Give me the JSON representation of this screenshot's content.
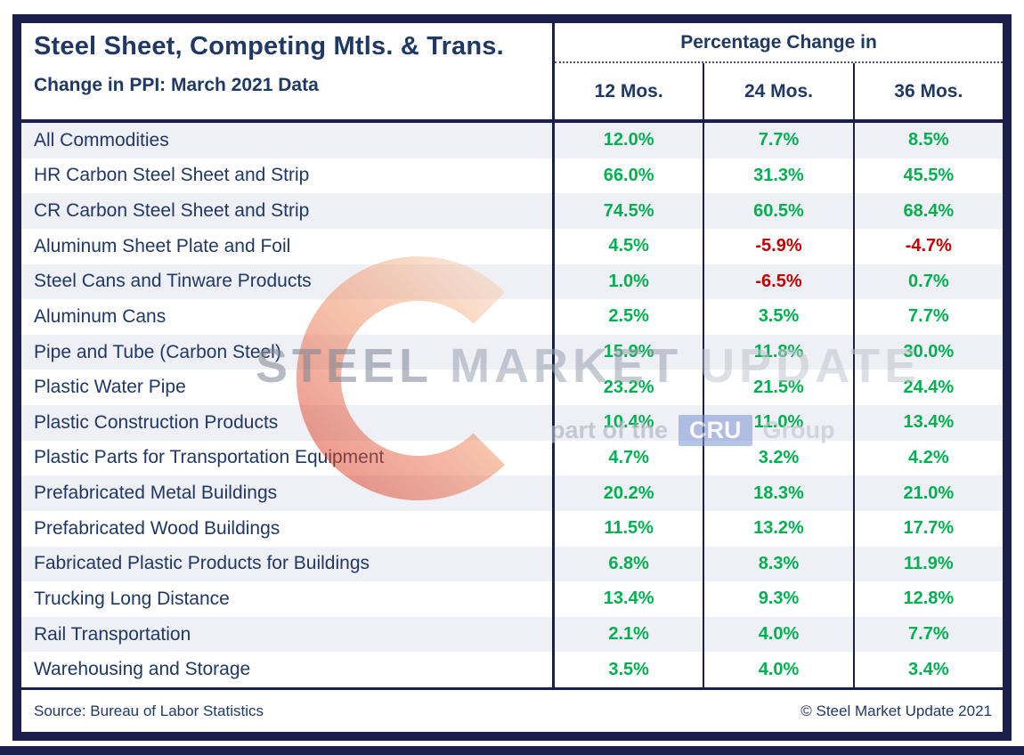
{
  "chart_data": {
    "type": "table",
    "title": "Steel Sheet, Competing Mtls. & Trans.",
    "subtitle": "Change in PPI: March 2021 Data",
    "column_group": "Percentage Change in",
    "columns": [
      "12 Mos.",
      "24 Mos.",
      "36 Mos."
    ],
    "rows": [
      {
        "label": "All Commodities",
        "values": [
          "12.0%",
          "7.7%",
          "8.5%"
        ]
      },
      {
        "label": "HR Carbon Steel Sheet and Strip",
        "values": [
          "66.0%",
          "31.3%",
          "45.5%"
        ]
      },
      {
        "label": "CR Carbon Steel Sheet and Strip",
        "values": [
          "74.5%",
          "60.5%",
          "68.4%"
        ]
      },
      {
        "label": "Aluminum Sheet Plate and Foil",
        "values": [
          "4.5%",
          "-5.9%",
          "-4.7%"
        ]
      },
      {
        "label": "Steel Cans and Tinware Products",
        "values": [
          "1.0%",
          "-6.5%",
          "0.7%"
        ]
      },
      {
        "label": "Aluminum Cans",
        "values": [
          "2.5%",
          "3.5%",
          "7.7%"
        ]
      },
      {
        "label": "Pipe and Tube (Carbon Steel)",
        "values": [
          "15.9%",
          "11.8%",
          "30.0%"
        ]
      },
      {
        "label": "Plastic Water Pipe",
        "values": [
          "23.2%",
          "21.5%",
          "24.4%"
        ]
      },
      {
        "label": "Plastic Construction Products",
        "values": [
          "10.4%",
          "11.0%",
          "13.4%"
        ]
      },
      {
        "label": "Plastic Parts for Transportation Equipment",
        "values": [
          "4.7%",
          "3.2%",
          "4.2%"
        ]
      },
      {
        "label": "Prefabricated Metal Buildings",
        "values": [
          "20.2%",
          "18.3%",
          "21.0%"
        ]
      },
      {
        "label": "Prefabricated Wood Buildings",
        "values": [
          "11.5%",
          "13.2%",
          "17.7%"
        ]
      },
      {
        "label": "Fabricated Plastic Products for Buildings",
        "values": [
          "6.8%",
          "8.3%",
          "11.9%"
        ]
      },
      {
        "label": "Trucking Long Distance",
        "values": [
          "13.4%",
          "9.3%",
          "12.8%"
        ]
      },
      {
        "label": "Rail Transportation",
        "values": [
          "2.1%",
          "4.0%",
          "7.7%"
        ]
      },
      {
        "label": "Warehousing and Storage",
        "values": [
          "3.5%",
          "4.0%",
          "3.4%"
        ]
      }
    ]
  },
  "footer": {
    "source": "Source: Bureau of Labor Statistics",
    "copyright": "© Steel Market Update 2021"
  },
  "watermark": {
    "brand_word_1": "STEEL",
    "brand_word_2": "MARKET",
    "brand_word_3": "UPDATE",
    "tagline_prefix": "part of the",
    "cru_badge": "CRU",
    "tagline_suffix": "Group"
  },
  "colors": {
    "positive": "#00B050",
    "negative": "#C00000",
    "navy_text": "#1F3864",
    "frame_navy": "#1A1F4B",
    "row_alt": "#EFEFF6"
  }
}
